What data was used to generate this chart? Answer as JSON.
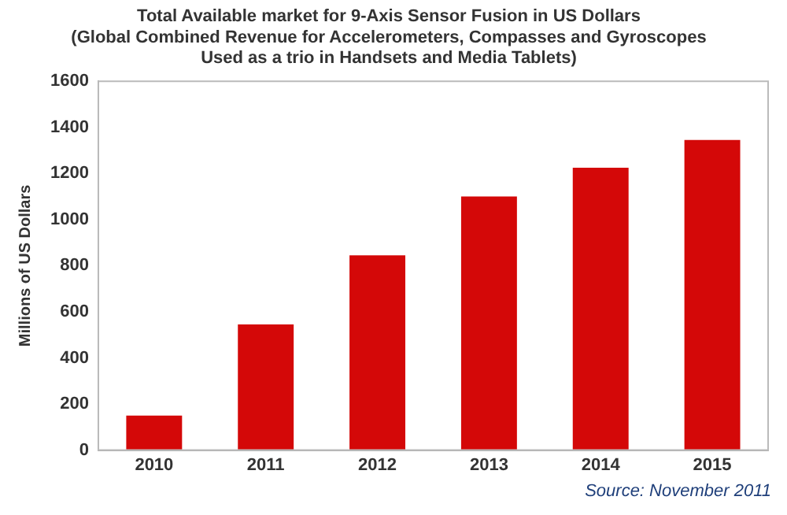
{
  "chart_data": {
    "type": "bar",
    "title": [
      "Total Available market for 9-Axis Sensor Fusion in US Dollars",
      "(Global Combined Revenue for Accelerometers, Compasses and Gyroscopes",
      "Used as a trio in Handsets and Media Tablets)"
    ],
    "ylabel": "Millions of US Dollars",
    "categories": [
      "2010",
      "2011",
      "2012",
      "2013",
      "2014",
      "2015"
    ],
    "values": [
      150,
      545,
      845,
      1100,
      1225,
      1345
    ],
    "color": "#d40808",
    "ylim": [
      0,
      1600
    ],
    "yticks": [
      0,
      200,
      400,
      600,
      800,
      1000,
      1200,
      1400,
      1600
    ],
    "grid": false,
    "annotations": [
      "Source: November 2011"
    ]
  }
}
